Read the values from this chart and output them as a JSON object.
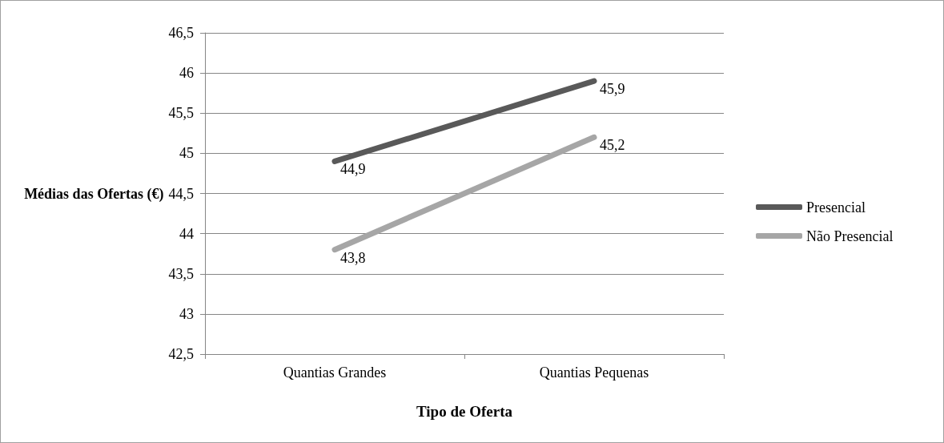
{
  "chart_data": {
    "type": "line",
    "xlabel": "Tipo de Oferta",
    "ylabel": "Médias das Ofertas (€)",
    "categories": [
      "Quantias Grandes",
      "Quantias Pequenas"
    ],
    "series": [
      {
        "name": "Presencial",
        "color": "#595959",
        "values": [
          44.9,
          45.9
        ],
        "value_labels": [
          "44,9",
          "45,9"
        ]
      },
      {
        "name": "Não Presencial",
        "color": "#a6a6a6",
        "values": [
          43.8,
          45.2
        ],
        "value_labels": [
          "43,8",
          "45,2"
        ]
      }
    ],
    "ylim": [
      42.5,
      46.5
    ],
    "yticks": [
      {
        "value": 42.5,
        "label": "42,5"
      },
      43,
      {
        "value": 43.5,
        "label": "43,5"
      },
      44,
      {
        "value": 44.5,
        "label": "44,5"
      },
      45,
      {
        "value": 45.5,
        "label": "45,5"
      },
      46,
      {
        "value": 46.5,
        "label": "46,5"
      }
    ],
    "grid": "y",
    "legend": "right",
    "marker": "none",
    "line_style": "solid"
  }
}
